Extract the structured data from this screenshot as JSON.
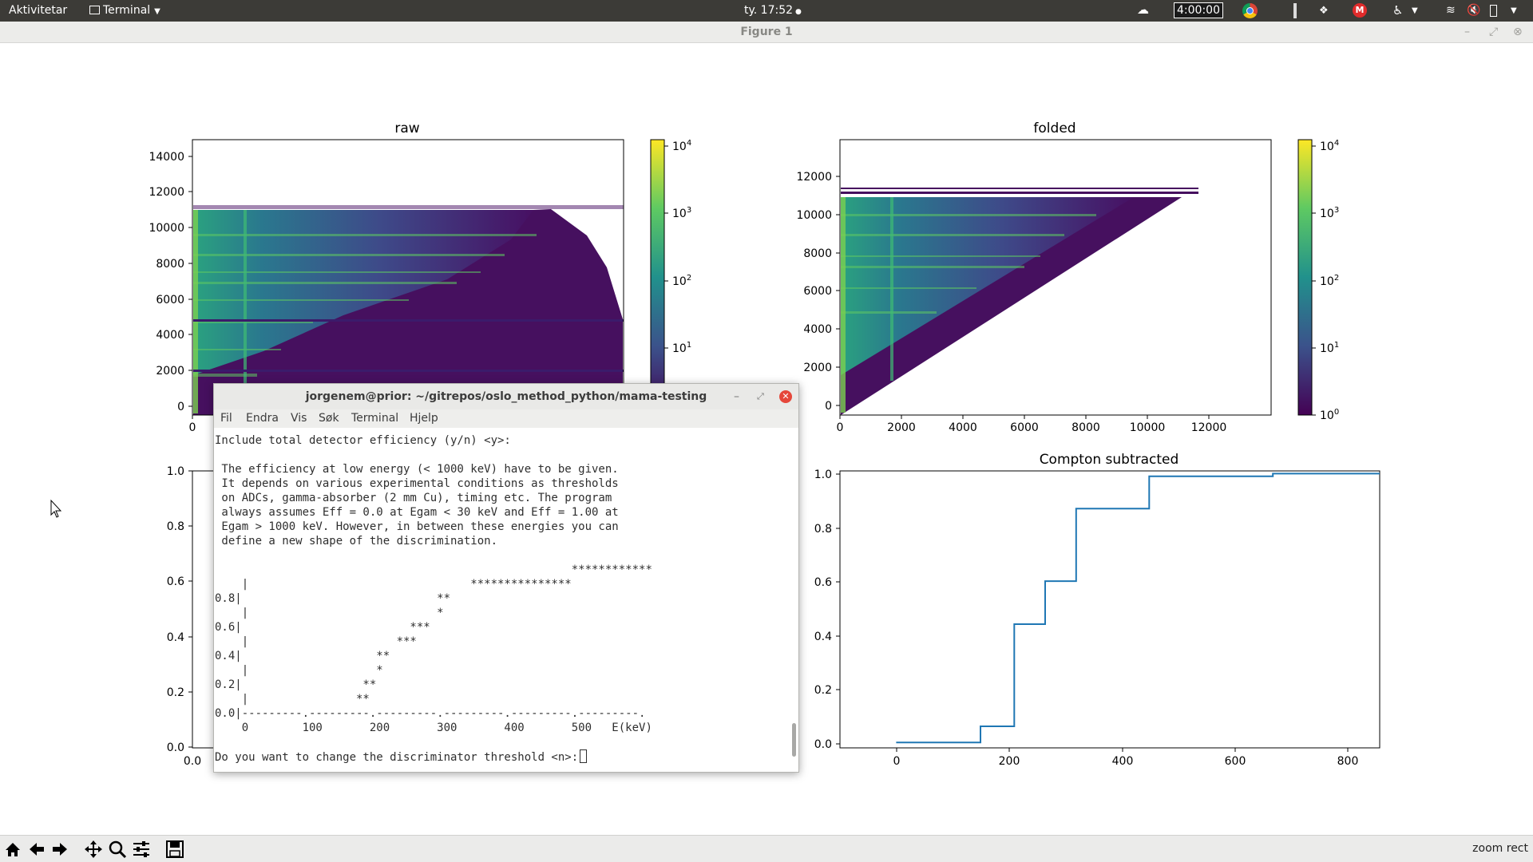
{
  "topbar": {
    "activities": "Aktivitetar",
    "app_menu": "Terminal",
    "clock": "ty. 17:52",
    "timer": "4:00:00"
  },
  "window": {
    "title": "Figure 1",
    "status_text": "zoom rect"
  },
  "toolbar_icons": [
    "home-icon",
    "back-icon",
    "forward-icon",
    "pan-icon",
    "zoom-icon",
    "configure-subplots-icon",
    "save-icon"
  ],
  "plots": {
    "raw_title": "raw",
    "folded_title": "folded",
    "compton_title": "Compton subtracted",
    "raw_yticks": [
      "0",
      "2000",
      "4000",
      "6000",
      "8000",
      "10000",
      "12000",
      "14000"
    ],
    "raw_xtick_visible": "0",
    "folded_yticks": [
      "0",
      "2000",
      "4000",
      "6000",
      "8000",
      "10000",
      "12000"
    ],
    "folded_xticks": [
      "0",
      "2000",
      "4000",
      "6000",
      "8000",
      "10000",
      "12000"
    ],
    "colorbar_ticks": [
      "10^0",
      "10^1",
      "10^2",
      "10^3",
      "10^4"
    ],
    "eff_yticks": [
      "0.0",
      "0.2",
      "0.4",
      "0.6",
      "0.8",
      "1.0"
    ],
    "eff_xtick_visible": "0.0",
    "compton_yticks": [
      "0.0",
      "0.2",
      "0.4",
      "0.6",
      "0.8",
      "1.0"
    ],
    "compton_xticks": [
      "0",
      "200",
      "400",
      "600",
      "800"
    ]
  },
  "chart_data": [
    {
      "type": "heatmap",
      "title": "raw",
      "scale": "log",
      "colormap": "viridis",
      "ylim": [
        -500,
        15000
      ],
      "colorbar": [
        1,
        10000
      ]
    },
    {
      "type": "heatmap",
      "title": "folded",
      "scale": "log",
      "colormap": "viridis",
      "xlim": [
        0,
        14000
      ],
      "ylim": [
        -500,
        14000
      ],
      "colorbar": [
        1,
        10000
      ]
    },
    {
      "type": "line",
      "title": "Compton subtracted",
      "xlim": [
        -100,
        860
      ],
      "ylim": [
        -0.02,
        1.01
      ],
      "color": "#1f77b4",
      "x": [
        0,
        150,
        150,
        210,
        210,
        265,
        265,
        320,
        320,
        450,
        450,
        670,
        670,
        860
      ],
      "y": [
        0.0,
        0.0,
        0.06,
        0.06,
        0.44,
        0.44,
        0.6,
        0.6,
        0.87,
        0.87,
        0.99,
        0.99,
        1.0,
        1.0
      ]
    }
  ],
  "terminal": {
    "title": "jorgenem@prior: ~/gitrepos/oslo_method_python/mama-testing",
    "menu": [
      "Fil",
      "Endra",
      "Vis",
      "Søk",
      "Terminal",
      "Hjelp"
    ],
    "lines": [
      "Include total detector efficiency (y/n) <y>:",
      "",
      " The efficiency at low energy (< 1000 keV) have to be given.",
      " It depends on various experimental conditions as thresholds",
      " on ADCs, gamma-absorber (2 mm Cu), timing etc. The program",
      " always assumes Eff = 0.0 at Egam < 30 keV and Eff = 1.00 at",
      " Egam > 1000 keV. However, in between these energies you can",
      " define a new shape of the discrimination.",
      "",
      "                                                     ************",
      "    |                                 ***************",
      "0.8|                             **",
      "    |                            *",
      "0.6|                         ***",
      "    |                      ***",
      "0.4|                    **",
      "    |                   *",
      "0.2|                  **",
      "    |                **",
      "0.0|---------.---------.---------.---------.---------.---------.",
      "    0        100       200       300       400       500   E(keV)",
      "",
      "Do you want to change the discriminator threshold <n>:"
    ]
  }
}
